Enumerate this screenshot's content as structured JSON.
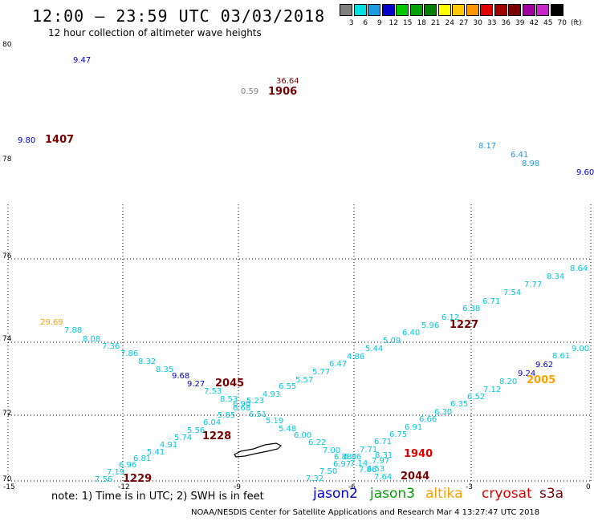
{
  "title": "12:00 – 23:59 UTC 03/03/2018",
  "subtitle": "12 hour collection of altimeter wave heights",
  "color_scale": {
    "labels": [
      "3",
      "6",
      "9",
      "12",
      "15",
      "18",
      "21",
      "24",
      "27",
      "30",
      "33",
      "36",
      "39",
      "42",
      "45",
      "70",
      "(ft)"
    ],
    "colors": [
      "#808080",
      "#00e0e0",
      "#1e9be0",
      "#0000c8",
      "#00c800",
      "#00a000",
      "#008000",
      "#ffff00",
      "#ffc800",
      "#ff9600",
      "#e00000",
      "#a00000",
      "#780000",
      "#a000a0",
      "#c828c8",
      "#000000"
    ]
  },
  "axes": {
    "lat_labels": [
      "80",
      "78",
      "76",
      "74",
      "72",
      "70"
    ],
    "lon_labels": [
      "-15",
      "-12",
      "-9",
      "-6",
      "-3",
      "0"
    ]
  },
  "observations": [
    {
      "text": "9.47",
      "color": "#0000c8"
    },
    {
      "text": "36.64",
      "color": "#780000"
    },
    {
      "text": "0.59",
      "color": "#808080"
    },
    {
      "text": "1906",
      "color": "#780000",
      "bold": true
    },
    {
      "text": "9.80",
      "color": "#0000c8"
    },
    {
      "text": "1407",
      "color": "#780000",
      "bold": true
    },
    {
      "text": "8.17",
      "color": "#1e9be0"
    },
    {
      "text": "6.41",
      "color": "#1e9be0"
    },
    {
      "text": "8.98",
      "color": "#1e9be0"
    },
    {
      "text": "9.60",
      "color": "#0000c8"
    },
    {
      "text": "8.64",
      "color": "#00c8e0"
    },
    {
      "text": "8.34",
      "color": "#00c8e0"
    },
    {
      "text": "7.77",
      "color": "#00c8e0"
    },
    {
      "text": "7.54",
      "color": "#00c8e0"
    },
    {
      "text": "6.71",
      "color": "#00c8e0"
    },
    {
      "text": "6.38",
      "color": "#00c8e0"
    },
    {
      "text": "6.12",
      "color": "#00c8e0"
    },
    {
      "text": "1227",
      "color": "#780000",
      "bold": true
    },
    {
      "text": "5.96",
      "color": "#00c8e0"
    },
    {
      "text": "6.40",
      "color": "#00c8e0"
    },
    {
      "text": "5.09",
      "color": "#00c8e0"
    },
    {
      "text": "5.44",
      "color": "#00c8e0"
    },
    {
      "text": "4.86",
      "color": "#00c8e0"
    },
    {
      "text": "6.47",
      "color": "#00c8e0"
    },
    {
      "text": "5.77",
      "color": "#00c8e0"
    },
    {
      "text": "5.57",
      "color": "#00c8e0"
    },
    {
      "text": "6.55",
      "color": "#00c8e0"
    },
    {
      "text": "4.93",
      "color": "#00c8e0"
    },
    {
      "text": "5.23",
      "color": "#00c8e0"
    },
    {
      "text": "29.69",
      "color": "#ffa000"
    },
    {
      "text": "7.88",
      "color": "#00c8e0"
    },
    {
      "text": "8.08",
      "color": "#00c8e0"
    },
    {
      "text": "7.36",
      "color": "#00c8e0"
    },
    {
      "text": "7.86",
      "color": "#00c8e0"
    },
    {
      "text": "8.32",
      "color": "#00c8e0"
    },
    {
      "text": "8.35",
      "color": "#00c8e0"
    },
    {
      "text": "9.68",
      "color": "#0000c8"
    },
    {
      "text": "9.27",
      "color": "#0000c8"
    },
    {
      "text": "2045",
      "color": "#780000",
      "bold": true
    },
    {
      "text": "7.53",
      "color": "#00c8e0"
    },
    {
      "text": "8.53",
      "color": "#00c8e0"
    },
    {
      "text": "6.68",
      "color": "#00c8e0"
    },
    {
      "text": "6.90",
      "color": "#00c8e0"
    },
    {
      "text": "5.85",
      "color": "#00c8e0"
    },
    {
      "text": "6.51",
      "color": "#00c8e0"
    },
    {
      "text": "5.19",
      "color": "#00c8e0"
    },
    {
      "text": "5.48",
      "color": "#00c8e0"
    },
    {
      "text": "6.00",
      "color": "#00c8e0"
    },
    {
      "text": "6.22",
      "color": "#00c8e0"
    },
    {
      "text": "7.00",
      "color": "#00c8e0"
    },
    {
      "text": "6.04",
      "color": "#00c8e0"
    },
    {
      "text": "5.56",
      "color": "#00c8e0"
    },
    {
      "text": "1228",
      "color": "#780000",
      "bold": true
    },
    {
      "text": "5.74",
      "color": "#00c8e0"
    },
    {
      "text": "4.91",
      "color": "#00c8e0"
    },
    {
      "text": "5.41",
      "color": "#00c8e0"
    },
    {
      "text": "6.81",
      "color": "#00c8e0"
    },
    {
      "text": "6.96",
      "color": "#00c8e0"
    },
    {
      "text": "7.19",
      "color": "#00c8e0"
    },
    {
      "text": "7.56",
      "color": "#00c8e0"
    },
    {
      "text": "1229",
      "color": "#780000",
      "bold": true
    },
    {
      "text": "9.00",
      "color": "#00c8e0"
    },
    {
      "text": "8.61",
      "color": "#00c8e0"
    },
    {
      "text": "9.62",
      "color": "#0000c8"
    },
    {
      "text": "9.24",
      "color": "#0000c8"
    },
    {
      "text": "2005",
      "color": "#ffa000",
      "bold": true
    },
    {
      "text": "8.20",
      "color": "#00c8e0"
    },
    {
      "text": "7.12",
      "color": "#00c8e0"
    },
    {
      "text": "6.52",
      "color": "#00c8e0"
    },
    {
      "text": "6.35",
      "color": "#00c8e0"
    },
    {
      "text": "6.30",
      "color": "#00c8e0"
    },
    {
      "text": "6.66",
      "color": "#00c8e0"
    },
    {
      "text": "6.91",
      "color": "#00c8e0"
    },
    {
      "text": "6.75",
      "color": "#00c8e0"
    },
    {
      "text": "6.71",
      "color": "#00c8e0"
    },
    {
      "text": "7.71",
      "color": "#00c8e0"
    },
    {
      "text": "1940",
      "color": "#e00000",
      "bold": true
    },
    {
      "text": "8.31",
      "color": "#00c8e0"
    },
    {
      "text": "7.97",
      "color": "#00c8e0"
    },
    {
      "text": "6.88",
      "color": "#00c8e0"
    },
    {
      "text": "6.86",
      "color": "#00c8e0"
    },
    {
      "text": "6.97",
      "color": "#00c8e0"
    },
    {
      "text": "7.14",
      "color": "#00c8e0"
    },
    {
      "text": "7.50",
      "color": "#00c8e0"
    },
    {
      "text": "7.32",
      "color": "#00c8e0"
    },
    {
      "text": "7.86",
      "color": "#00c8e0"
    },
    {
      "text": "6.53",
      "color": "#00c8e0"
    },
    {
      "text": "7.64",
      "color": "#00c8e0"
    },
    {
      "text": "2044",
      "color": "#780000",
      "bold": true
    }
  ],
  "note": "note: 1) Time is in UTC; 2) SWH is in feet",
  "satellites": [
    {
      "name": "jason2",
      "color": "#0000c8"
    },
    {
      "name": "jason3",
      "color": "#00a000"
    },
    {
      "name": "altika",
      "color": "#ffa000"
    },
    {
      "name": "cryosat",
      "color": "#e00000"
    },
    {
      "name": "s3a",
      "color": "#780000"
    }
  ],
  "credit": "NOAA/NESDIS Center for Satellite Applications and Research    Mar  4 13:27:47 UTC 2018"
}
